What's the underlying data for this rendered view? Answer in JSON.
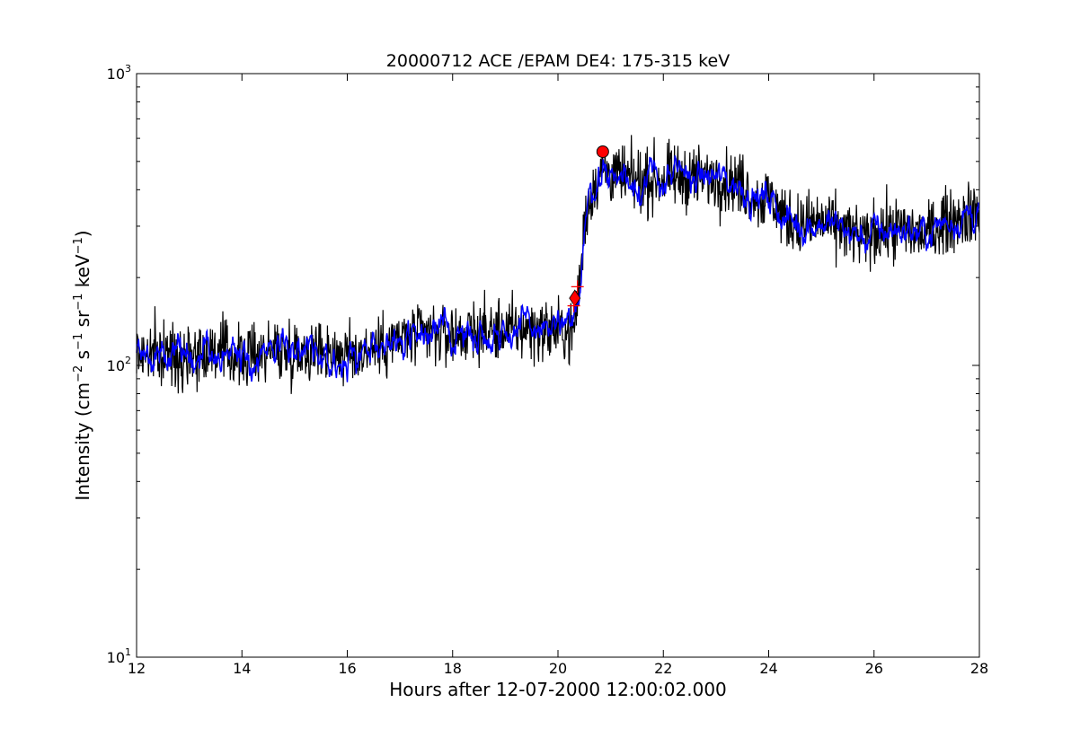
{
  "chart_data": {
    "type": "line",
    "title": "20000712 ACE /EPAM DE4: 175-315 keV",
    "xlabel": "Hours after 12-07-2000 12:00:02.000",
    "ylabel": {
      "prefix": "Intensity (cm",
      "exp1": "−2",
      "mid1": " s",
      "exp2": "−1",
      "mid2": " sr",
      "exp3": "−1",
      "mid3": " keV",
      "exp4": "−1",
      "suffix": ")"
    },
    "xlim": [
      12,
      28
    ],
    "ylim": [
      10,
      1000
    ],
    "yscale": "log",
    "grid": false,
    "x_ticks": [
      12,
      14,
      16,
      18,
      20,
      22,
      24,
      26,
      28
    ],
    "x_tick_labels": [
      "12",
      "14",
      "16",
      "18",
      "20",
      "22",
      "24",
      "26",
      "28"
    ],
    "y_ticks": [
      {
        "value": 10,
        "base": "10",
        "exp": "1"
      },
      {
        "value": 100,
        "base": "10",
        "exp": "2"
      },
      {
        "value": 1000,
        "base": "10",
        "exp": "3"
      }
    ],
    "series": [
      {
        "color": "#000000",
        "style": "raw",
        "x": [
          12.0,
          12.5,
          13.0,
          13.5,
          14.0,
          14.5,
          15.0,
          15.5,
          16.0,
          16.5,
          17.0,
          17.5,
          18.0,
          18.5,
          19.0,
          19.5,
          20.0,
          20.3,
          20.35,
          20.4,
          20.45,
          20.5,
          20.55,
          20.6,
          20.7,
          20.85,
          21.0,
          21.5,
          22.0,
          22.5,
          23.0,
          23.5,
          23.8,
          24.0,
          24.1,
          24.3,
          24.6,
          25.0,
          25.5,
          25.8,
          26.0,
          26.5,
          27.0,
          27.2,
          27.5,
          28.0
        ],
        "y": [
          110,
          108,
          110,
          112,
          106,
          113,
          112,
          114,
          108,
          115,
          123,
          128,
          127,
          130,
          132,
          134,
          131,
          130,
          160,
          185,
          230,
          300,
          345,
          370,
          420,
          470,
          455,
          425,
          435,
          445,
          438,
          415,
          370,
          375,
          365,
          320,
          305,
          310,
          290,
          270,
          285,
          295,
          280,
          300,
          320,
          335
        ],
        "jitter": 0.075
      },
      {
        "color": "#0000ff",
        "style": "smoothed",
        "x": [
          12.0,
          12.5,
          13.0,
          13.5,
          14.0,
          14.5,
          15.0,
          15.5,
          16.0,
          16.5,
          17.0,
          17.5,
          18.0,
          18.5,
          19.0,
          19.5,
          20.0,
          20.3,
          20.35,
          20.4,
          20.45,
          20.5,
          20.55,
          20.6,
          20.7,
          20.85,
          21.0,
          21.5,
          22.0,
          22.5,
          23.0,
          23.5,
          23.8,
          24.0,
          24.1,
          24.3,
          24.6,
          25.0,
          25.5,
          25.8,
          26.0,
          26.5,
          27.0,
          27.2,
          27.5,
          28.0
        ],
        "y": [
          110,
          108,
          110,
          112,
          106,
          113,
          112,
          114,
          108,
          115,
          123,
          128,
          127,
          130,
          132,
          134,
          131,
          130,
          160,
          185,
          230,
          300,
          345,
          370,
          420,
          470,
          455,
          425,
          435,
          445,
          438,
          415,
          370,
          375,
          365,
          320,
          305,
          310,
          290,
          270,
          285,
          295,
          280,
          300,
          320,
          335
        ],
        "jitter": 0.028
      }
    ],
    "markers": [
      {
        "shape": "circle",
        "x": 20.85,
        "y": 540,
        "color": "#ff0000"
      },
      {
        "shape": "diamond",
        "x": 20.32,
        "y": 170,
        "color": "#ff0000"
      },
      {
        "shape": "plus",
        "x": 20.37,
        "y": 186,
        "color": "#ff0000"
      },
      {
        "shape": "plus",
        "x": 20.3,
        "y": 160,
        "color": "#ff0000"
      }
    ]
  }
}
